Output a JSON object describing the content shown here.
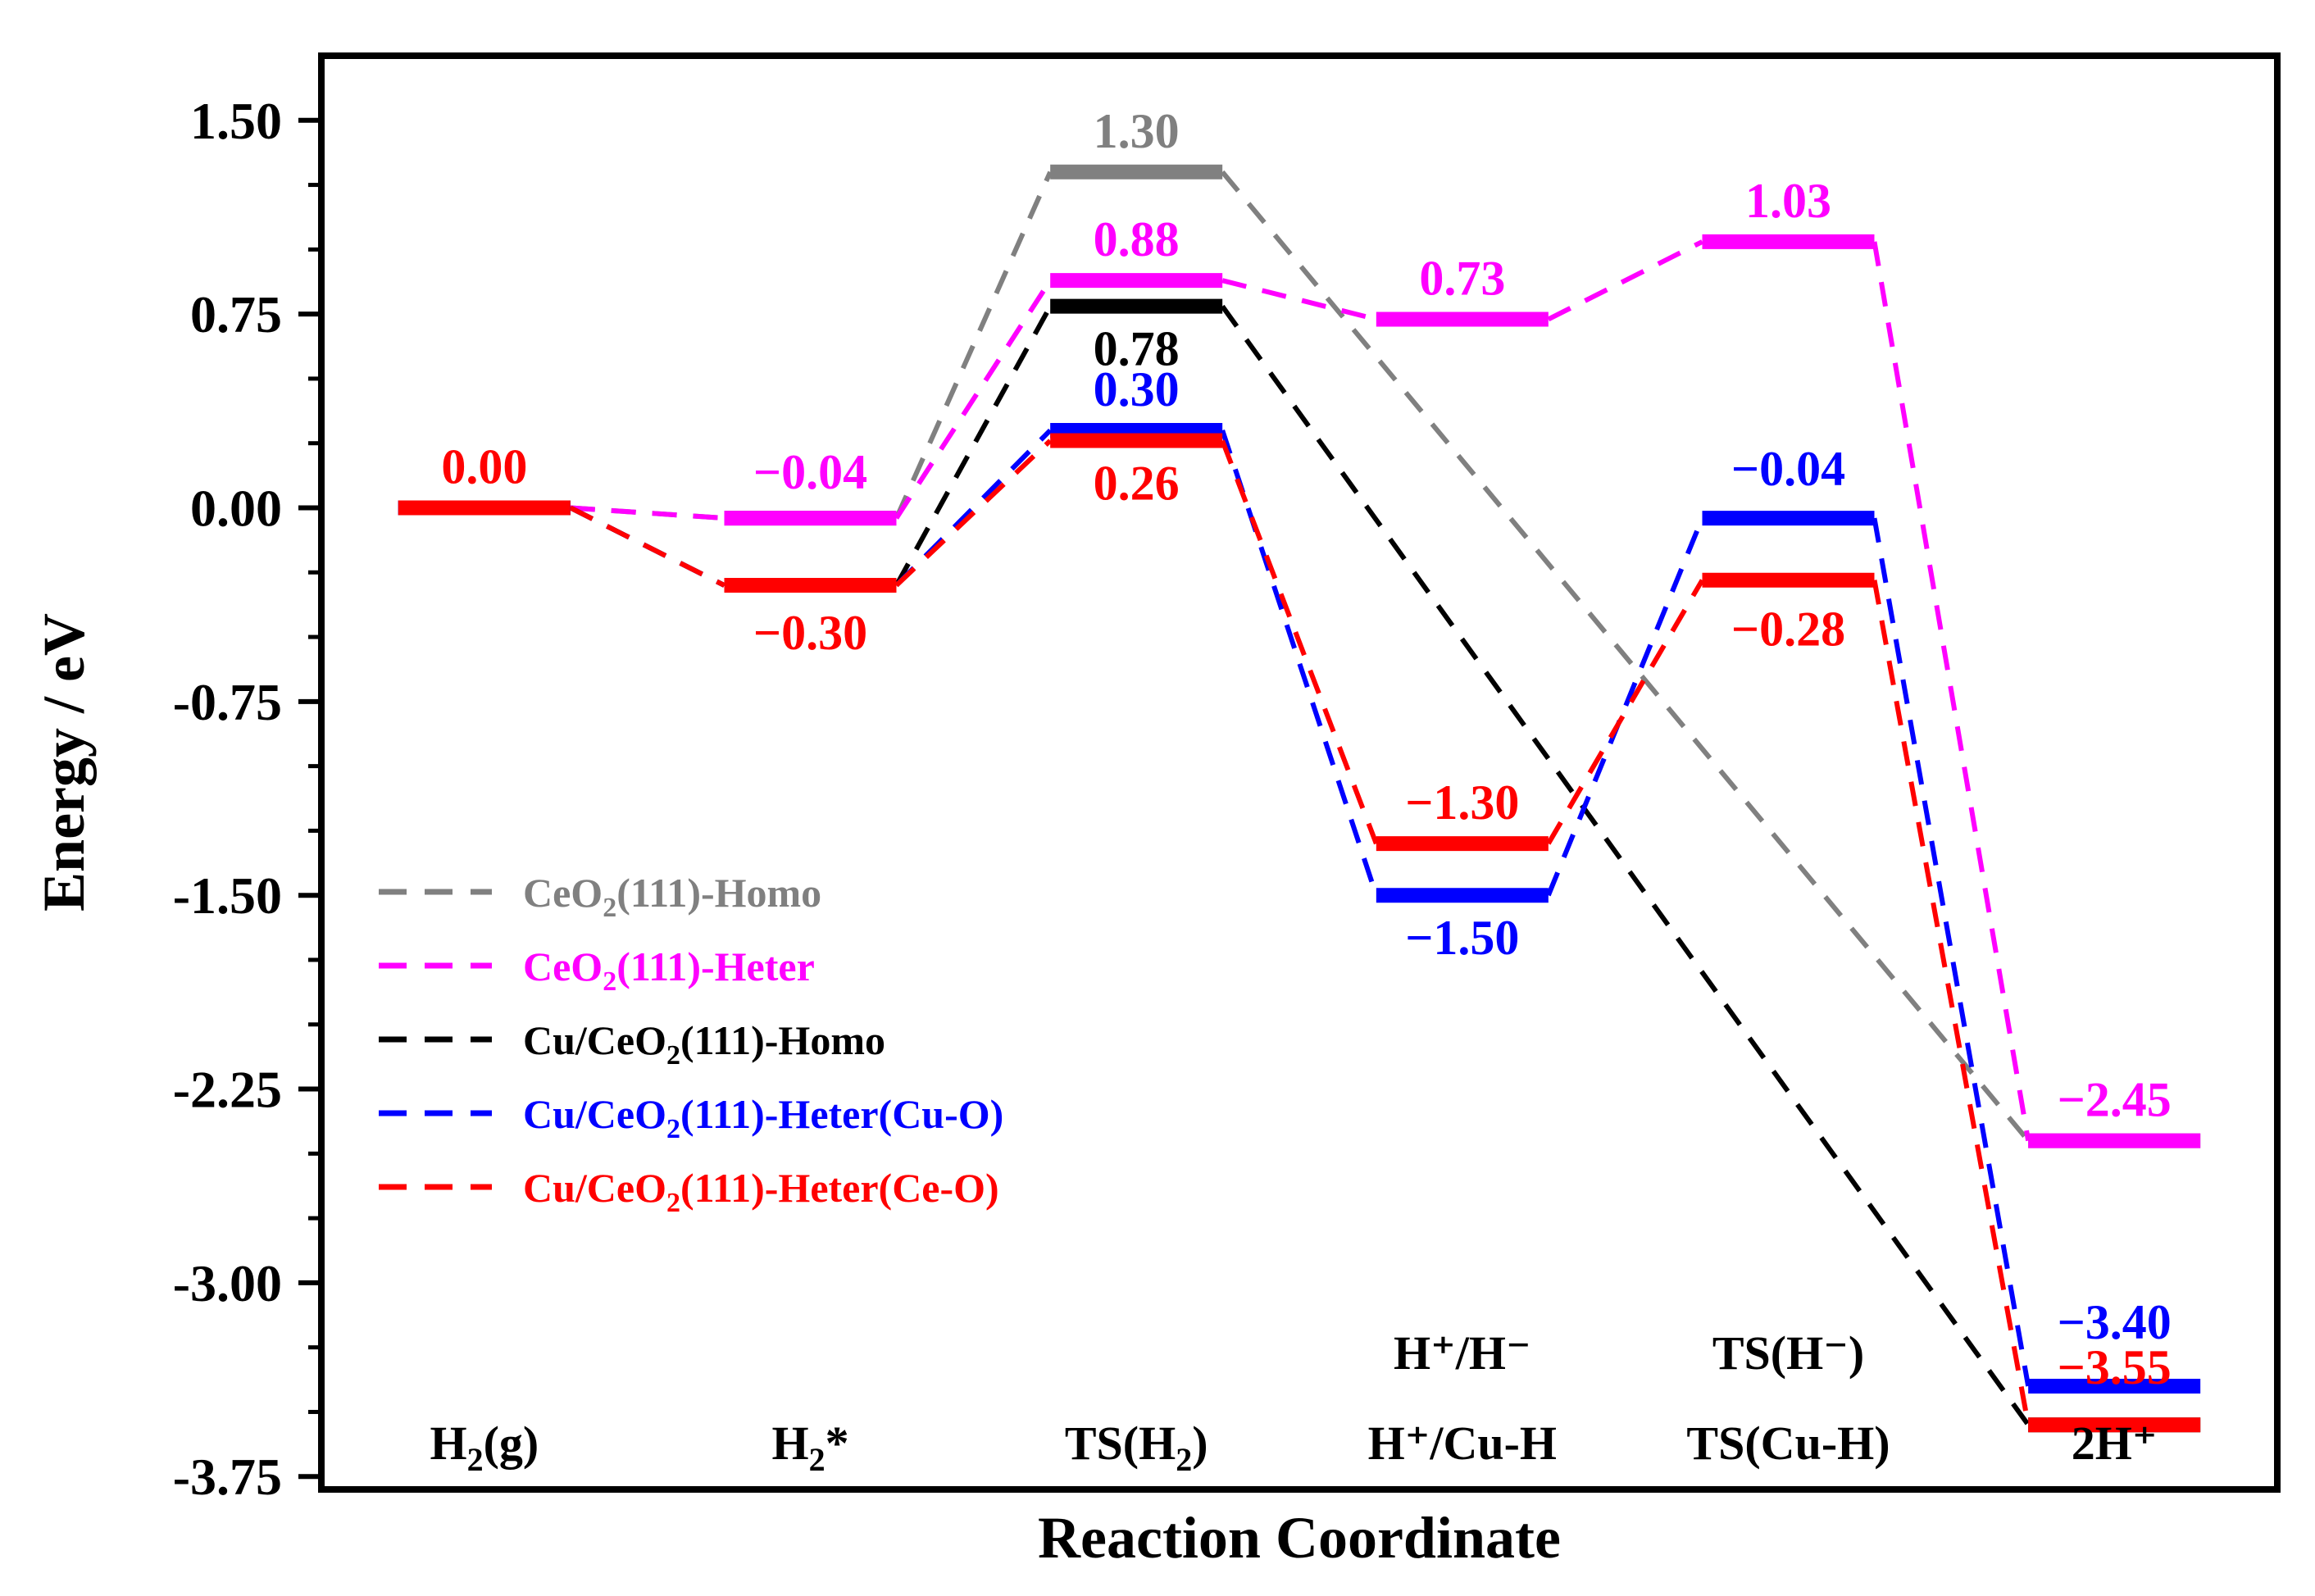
{
  "chart_data": {
    "type": "line",
    "title": "",
    "xlabel": "Reaction Coordinate",
    "ylabel": "Energy / eV",
    "ylim": [
      -3.8,
      1.75
    ],
    "yticks": [
      "1.50",
      "0.75",
      "0.00",
      "-0.75",
      "-1.50",
      "-2.25",
      "-3.00",
      "-3.75"
    ],
    "ytick_values": [
      1.5,
      0.75,
      0.0,
      -0.75,
      -1.5,
      -2.25,
      -3.0,
      -3.75
    ],
    "legend_position": "bottom-left",
    "categories": [
      {
        "top": "",
        "main": "H",
        "sub": "2",
        "rest": "(g)"
      },
      {
        "top": "",
        "main": "H",
        "sub": "2",
        "rest": "*"
      },
      {
        "top": "",
        "main": "TS(H",
        "sub": "2",
        "rest": ")"
      },
      {
        "top": "H⁺/H⁻",
        "main": "H⁺/Cu-H",
        "sub": "",
        "rest": ""
      },
      {
        "top": "TS(H⁻)",
        "main": "TS(Cu-H)",
        "sub": "",
        "rest": ""
      },
      {
        "top": "",
        "main": "2H⁺",
        "sub": "",
        "rest": ""
      }
    ],
    "series": [
      {
        "name": "CeO2(111)-Homo",
        "legend": {
          "a": "CeO",
          "sub": "2",
          "b": "(111)-Homo"
        },
        "color": "#808080",
        "values": [
          0.0,
          -0.04,
          1.3,
          null,
          null,
          -2.45
        ],
        "labels": [
          "",
          "",
          "1.30",
          "",
          "",
          ""
        ]
      },
      {
        "name": "CeO2(111)-Heter",
        "legend": {
          "a": "CeO",
          "sub": "2",
          "b": "(111)-Heter"
        },
        "color": "#ff00ff",
        "values": [
          0.0,
          -0.04,
          0.88,
          0.73,
          1.03,
          -2.45
        ],
        "labels": [
          "",
          "−0.04",
          "0.88",
          "0.73",
          "1.03",
          "−2.45"
        ]
      },
      {
        "name": "Cu/CeO2(111)-Homo",
        "legend": {
          "a": "Cu/CeO",
          "sub": "2",
          "b": "(111)-Homo"
        },
        "color": "#000000",
        "values": [
          0.0,
          -0.3,
          0.78,
          null,
          null,
          -3.55
        ],
        "labels": [
          "",
          "",
          "0.78",
          "",
          "",
          ""
        ]
      },
      {
        "name": "Cu/CeO2(111)-Heter(Cu-O)",
        "legend": {
          "a": "Cu/CeO",
          "sub": "2",
          "b": "(111)-Heter(Cu-O)"
        },
        "color": "#0000ff",
        "values": [
          0.0,
          -0.3,
          0.3,
          -1.5,
          -0.04,
          -3.4
        ],
        "labels": [
          "",
          "",
          "0.30",
          "−1.50",
          "−0.04",
          "−3.40"
        ]
      },
      {
        "name": "Cu/CeO2(111)-Heter(Ce-O)",
        "legend": {
          "a": "Cu/CeO",
          "sub": "2",
          "b": "(111)-Heter(Ce-O)"
        },
        "color": "#ff0000",
        "values": [
          0.0,
          -0.3,
          0.26,
          -1.3,
          -0.28,
          -3.55
        ],
        "labels": [
          "0.00",
          "−0.30",
          "0.26",
          "−1.30",
          "−0.28",
          "−3.55"
        ]
      }
    ]
  }
}
